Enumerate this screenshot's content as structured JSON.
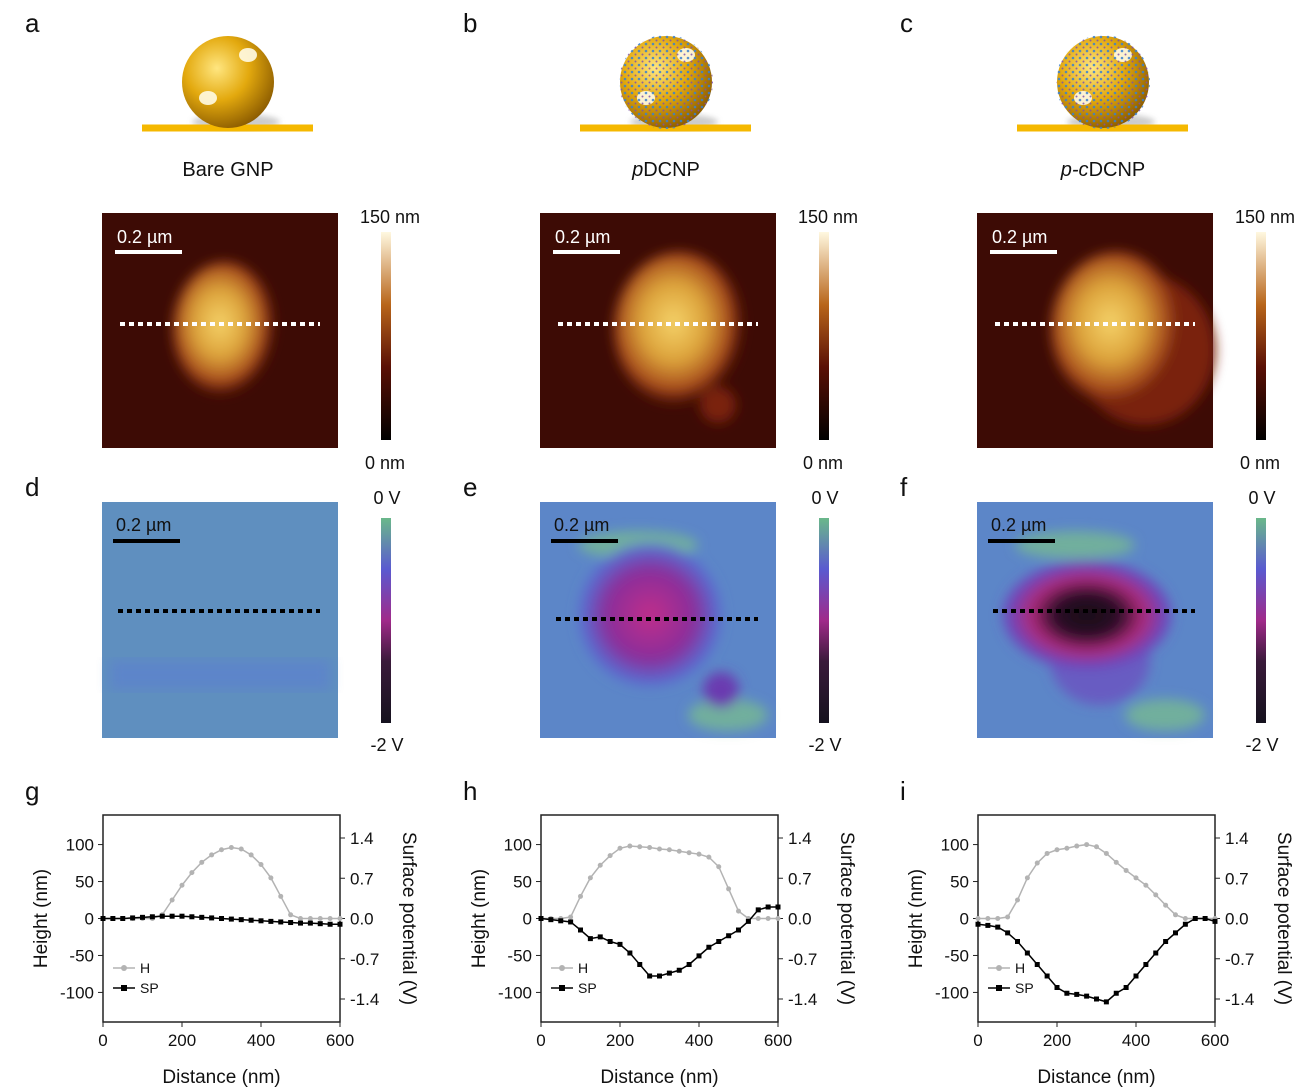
{
  "illustrations": [
    {
      "letter": "a",
      "caption": [
        {
          "text": "Bare GNP",
          "italic": false
        }
      ]
    },
    {
      "letter": "b",
      "caption": [
        {
          "text": "p",
          "italic": true
        },
        {
          "text": "DCNP",
          "italic": false
        }
      ]
    },
    {
      "letter": "c",
      "caption": [
        {
          "text": "p-c",
          "italic": true
        },
        {
          "text": "DCNP",
          "italic": false
        }
      ]
    }
  ],
  "height_maps": [
    {
      "scale_bar": "0.2 µm",
      "cbar_max": "150 nm",
      "cbar_min": "0 nm"
    },
    {
      "scale_bar": "0.2 µm",
      "cbar_max": "150 nm",
      "cbar_min": "0 nm"
    },
    {
      "scale_bar": "0.2 µm",
      "cbar_max": "150 nm",
      "cbar_min": "0 nm"
    }
  ],
  "potential_maps": [
    {
      "letter": "d",
      "scale_bar": "0.2 µm",
      "cbar_max": "0 V",
      "cbar_min": "-2 V"
    },
    {
      "letter": "e",
      "scale_bar": "0.2 µm",
      "cbar_max": "0 V",
      "cbar_min": "-2 V"
    },
    {
      "letter": "f",
      "scale_bar": "0.2 µm",
      "cbar_max": "0 V",
      "cbar_min": "-2 V"
    }
  ],
  "chart_data": [
    {
      "type": "line",
      "panel_label": "g",
      "x_label": "Distance (nm)",
      "y_label": "Height (nm)",
      "y2_label": "Surface potential (V)",
      "x": [
        0,
        25,
        50,
        75,
        100,
        125,
        150,
        175,
        200,
        225,
        250,
        275,
        300,
        325,
        350,
        375,
        400,
        425,
        450,
        475,
        500,
        525,
        550,
        575,
        600
      ],
      "xlim": [
        0,
        600
      ],
      "xticks": [
        0,
        200,
        400,
        600
      ],
      "ylim": [
        -140,
        140
      ],
      "yticks": [
        -100,
        -50,
        0,
        50,
        100
      ],
      "y2lim": [
        -1.8,
        1.8
      ],
      "y2ticks": [
        -1.4,
        -0.7,
        {
          "value": 0,
          "label": "0.0"
        },
        0.7,
        1.4
      ],
      "series": [
        {
          "name": "H",
          "color": "#b3b3b3",
          "values": [
            0,
            0,
            0,
            0,
            0,
            0,
            5,
            25,
            45,
            62,
            76,
            86,
            93,
            96,
            94,
            86,
            73,
            55,
            30,
            5,
            0,
            0,
            0,
            0,
            0
          ]
        },
        {
          "name": "SP",
          "color": "#000000",
          "axis": "y2",
          "values": [
            0,
            0,
            0,
            0.01,
            0.02,
            0.03,
            0.04,
            0.04,
            0.04,
            0.03,
            0.02,
            0.01,
            0,
            -0.01,
            -0.02,
            -0.03,
            -0.04,
            -0.05,
            -0.06,
            -0.07,
            -0.08,
            -0.08,
            -0.09,
            -0.1,
            -0.1
          ]
        }
      ]
    },
    {
      "type": "line",
      "panel_label": "h",
      "x_label": "Distance (nm)",
      "y_label": "Height (nm)",
      "y2_label": "Surface potential (V)",
      "x": [
        0,
        25,
        50,
        75,
        100,
        125,
        150,
        175,
        200,
        225,
        250,
        275,
        300,
        325,
        350,
        375,
        400,
        425,
        450,
        475,
        500,
        525,
        550,
        575,
        600
      ],
      "xlim": [
        0,
        600
      ],
      "xticks": [
        0,
        200,
        400,
        600
      ],
      "ylim": [
        -140,
        140
      ],
      "yticks": [
        -100,
        -50,
        0,
        50,
        100
      ],
      "y2lim": [
        -1.8,
        1.8
      ],
      "y2ticks": [
        -1.4,
        -0.7,
        {
          "value": 0,
          "label": "0.0"
        },
        0.7,
        1.4
      ],
      "series": [
        {
          "name": "H",
          "color": "#b3b3b3",
          "values": [
            0,
            0,
            0,
            2,
            30,
            55,
            72,
            85,
            95,
            98,
            97,
            96,
            94,
            93,
            91,
            89,
            87,
            83,
            70,
            40,
            10,
            0,
            0,
            0,
            0
          ]
        },
        {
          "name": "SP",
          "color": "#000000",
          "axis": "y2",
          "values": [
            0,
            -0.02,
            -0.04,
            -0.06,
            -0.2,
            -0.35,
            -0.32,
            -0.4,
            -0.45,
            -0.6,
            -0.8,
            -1.0,
            -1.0,
            -0.95,
            -0.9,
            -0.8,
            -0.65,
            -0.5,
            -0.4,
            -0.3,
            -0.2,
            -0.05,
            0.15,
            0.2,
            0.2
          ]
        }
      ]
    },
    {
      "type": "line",
      "panel_label": "i",
      "x_label": "Distance (nm)",
      "y_label": "Height (nm)",
      "y2_label": "Surface potential (V)",
      "x": [
        0,
        25,
        50,
        75,
        100,
        125,
        150,
        175,
        200,
        225,
        250,
        275,
        300,
        325,
        350,
        375,
        400,
        425,
        450,
        475,
        500,
        525,
        550,
        575,
        600
      ],
      "xlim": [
        0,
        600
      ],
      "xticks": [
        0,
        200,
        400,
        600
      ],
      "ylim": [
        -140,
        140
      ],
      "yticks": [
        -100,
        -50,
        0,
        50,
        100
      ],
      "y2lim": [
        -1.8,
        1.8
      ],
      "y2ticks": [
        -1.4,
        -0.7,
        {
          "value": 0,
          "label": "0.0"
        },
        0.7,
        1.4
      ],
      "series": [
        {
          "name": "H",
          "color": "#b3b3b3",
          "values": [
            0,
            0,
            0,
            2,
            25,
            55,
            75,
            88,
            93,
            95,
            98,
            100,
            97,
            88,
            76,
            65,
            55,
            45,
            32,
            18,
            5,
            0,
            0,
            0,
            0
          ]
        },
        {
          "name": "SP",
          "color": "#000000",
          "axis": "y2",
          "values": [
            -0.1,
            -0.12,
            -0.15,
            -0.25,
            -0.4,
            -0.6,
            -0.8,
            -1.0,
            -1.2,
            -1.3,
            -1.32,
            -1.35,
            -1.4,
            -1.45,
            -1.3,
            -1.2,
            -1.0,
            -0.8,
            -0.6,
            -0.4,
            -0.25,
            -0.1,
            0,
            0,
            -0.05
          ]
        }
      ]
    }
  ]
}
